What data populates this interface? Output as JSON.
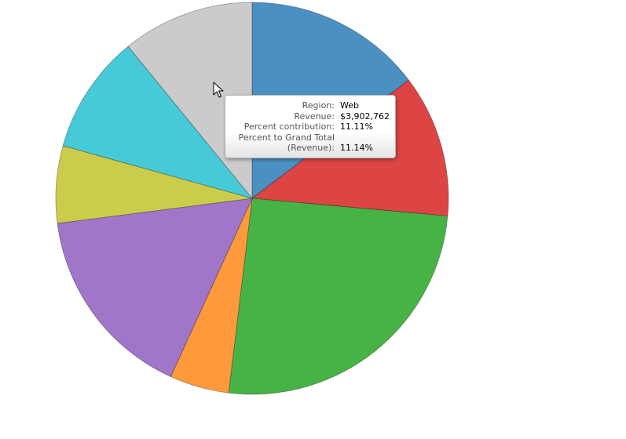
{
  "chart_data": {
    "type": "pie",
    "slices": [
      {
        "value": 15.0,
        "color": "#4a90c2"
      },
      {
        "value": 12.0,
        "color": "#dd4444"
      },
      {
        "value": 26.0,
        "color": "#47b347"
      },
      {
        "value": 5.0,
        "color": "#ff9a3c"
      },
      {
        "value": 16.5,
        "color": "#a076c9"
      },
      {
        "value": 6.5,
        "color": "#cbcc4c"
      },
      {
        "value": 10.0,
        "color": "#47cad8"
      },
      {
        "value": 11.11,
        "color": "#cbcbcb"
      }
    ]
  },
  "tooltip": {
    "rows": [
      {
        "label": "Region:",
        "value": "Web"
      },
      {
        "label": "Revenue:",
        "value": "$3,902,762"
      },
      {
        "label": "Percent contribution:",
        "value": "11.11%"
      },
      {
        "label": "Percent to Grand Total",
        "value": ""
      },
      {
        "label": "(Revenue):",
        "value": "11.14%"
      }
    ]
  },
  "icons": {
    "pointer": "mouse-pointer-icon"
  }
}
